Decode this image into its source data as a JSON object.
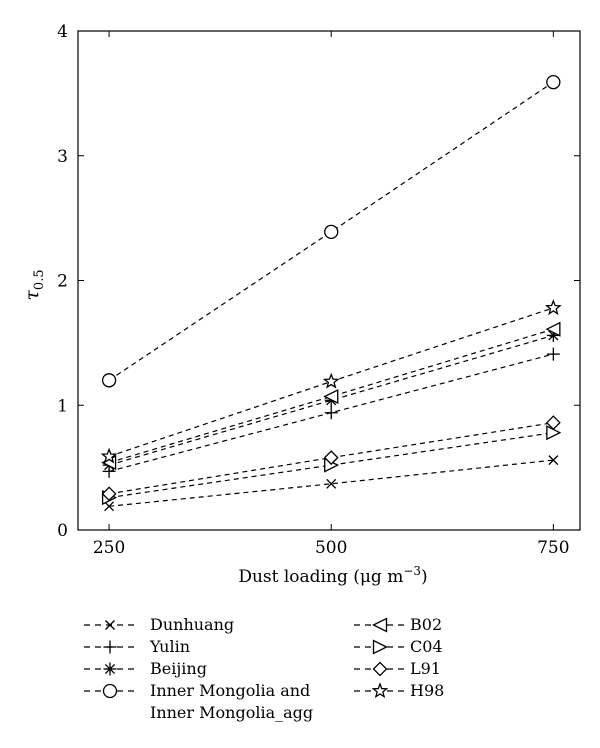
{
  "chart_data": {
    "type": "line",
    "x": [
      250,
      500,
      750
    ],
    "xlabel": "Dust loading (μg m",
    "xlabel_sup": "−3",
    "xlabel_close": ")",
    "ylabel_main": "τ",
    "ylabel_sub": "0.5",
    "xlim": [
      215,
      780
    ],
    "ylim": [
      0,
      4
    ],
    "xticks": [
      "250",
      "500",
      "750"
    ],
    "yticks": [
      "0",
      "1",
      "2",
      "3",
      "4"
    ],
    "grid": false,
    "legend_position": "bottom",
    "series": [
      {
        "name": "Dunhuang",
        "marker": "x",
        "values": [
          0.19,
          0.37,
          0.56
        ]
      },
      {
        "name": "Yulin",
        "marker": "plus",
        "values": [
          0.47,
          0.94,
          1.41
        ]
      },
      {
        "name": "Beijing",
        "marker": "asterisk",
        "values": [
          0.52,
          1.04,
          1.56
        ]
      },
      {
        "name": "Inner Mongolia and",
        "name_line2": "Inner Mongolia_agg",
        "marker": "circle",
        "values": [
          1.2,
          2.39,
          3.59
        ]
      },
      {
        "name": "B02",
        "marker": "triangle-left",
        "values": [
          0.54,
          1.07,
          1.61
        ]
      },
      {
        "name": "C04",
        "marker": "triangle-right",
        "values": [
          0.26,
          0.52,
          0.78
        ]
      },
      {
        "name": "L91",
        "marker": "diamond",
        "values": [
          0.29,
          0.58,
          0.86
        ]
      },
      {
        "name": "H98",
        "marker": "star",
        "values": [
          0.59,
          1.19,
          1.78
        ]
      }
    ]
  }
}
